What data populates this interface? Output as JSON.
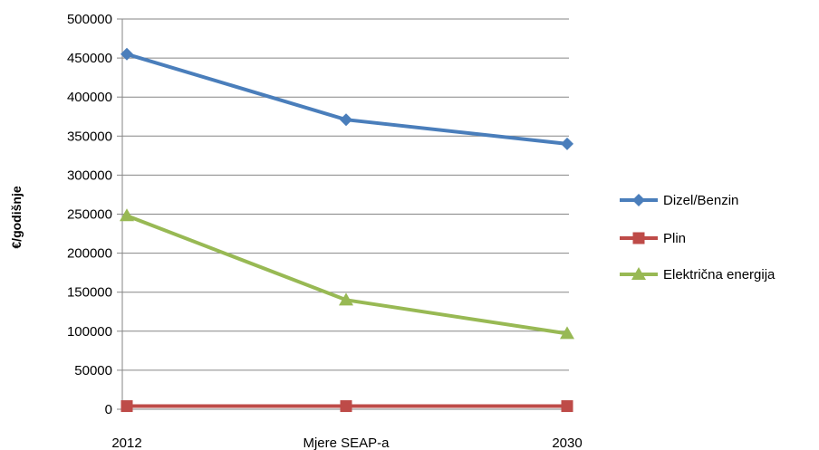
{
  "chart_data": {
    "type": "line",
    "categories": [
      "2012",
      "Mjere SEAP-a",
      "2030"
    ],
    "series": [
      {
        "name": "Dizel/Benzin",
        "values": [
          455000,
          371000,
          340000
        ],
        "color": "#4a7ebb",
        "marker": "diamond"
      },
      {
        "name": "Plin",
        "values": [
          4000,
          4000,
          4000
        ],
        "color": "#be4b48",
        "marker": "square"
      },
      {
        "name": "Električna energija",
        "values": [
          248000,
          140000,
          97000
        ],
        "color": "#98b954",
        "marker": "triangle"
      }
    ],
    "ylabel": "€/godišnje",
    "ylim": [
      0,
      500000
    ],
    "yticks": [
      "0",
      "50000",
      "100000",
      "150000",
      "200000",
      "250000",
      "300000",
      "350000",
      "400000",
      "450000",
      "500000"
    ],
    "grid": true,
    "legend_position": "right",
    "colors": {
      "gridline": "#868686",
      "axis": "#868686"
    }
  }
}
